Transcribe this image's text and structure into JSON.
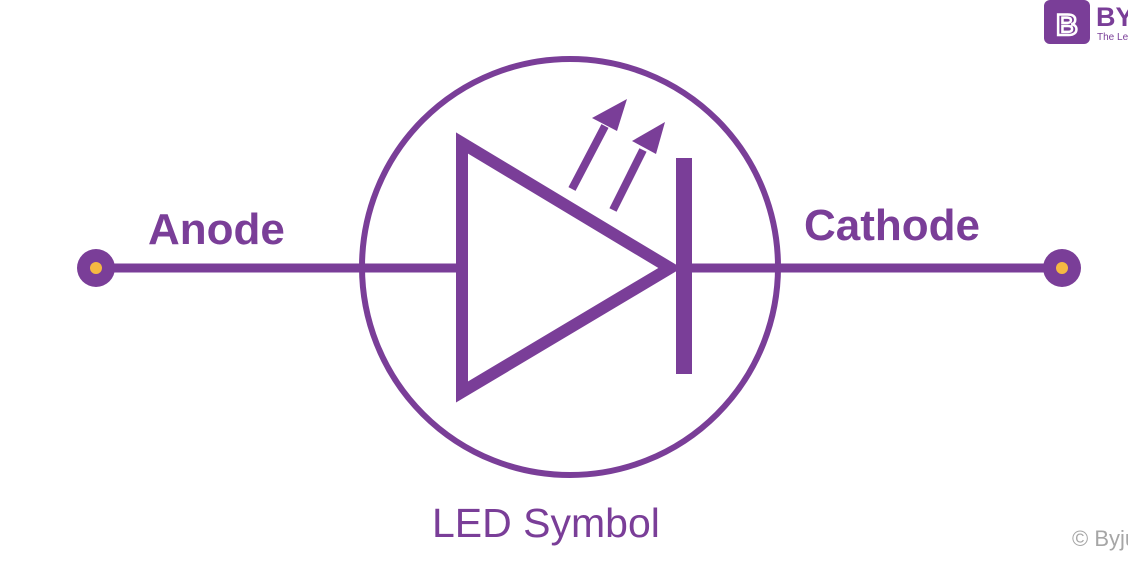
{
  "diagram": {
    "title": "LED Symbol",
    "labels": {
      "anode": "Anode",
      "cathode": "Cathode"
    }
  },
  "logo": {
    "mark": "B",
    "name": "BYJU'S",
    "tagline": "The Learning App"
  },
  "copyright": "© Byjus.com",
  "colors": {
    "primary": "#7a3e98",
    "terminal_dot": "#f5b942",
    "watermark": "#a6a6a6",
    "background": "#ffffff"
  },
  "icons": {
    "logo": "byjus-logo-icon",
    "terminal": "terminal-dot-icon",
    "light": "emission-arrow-icon"
  }
}
